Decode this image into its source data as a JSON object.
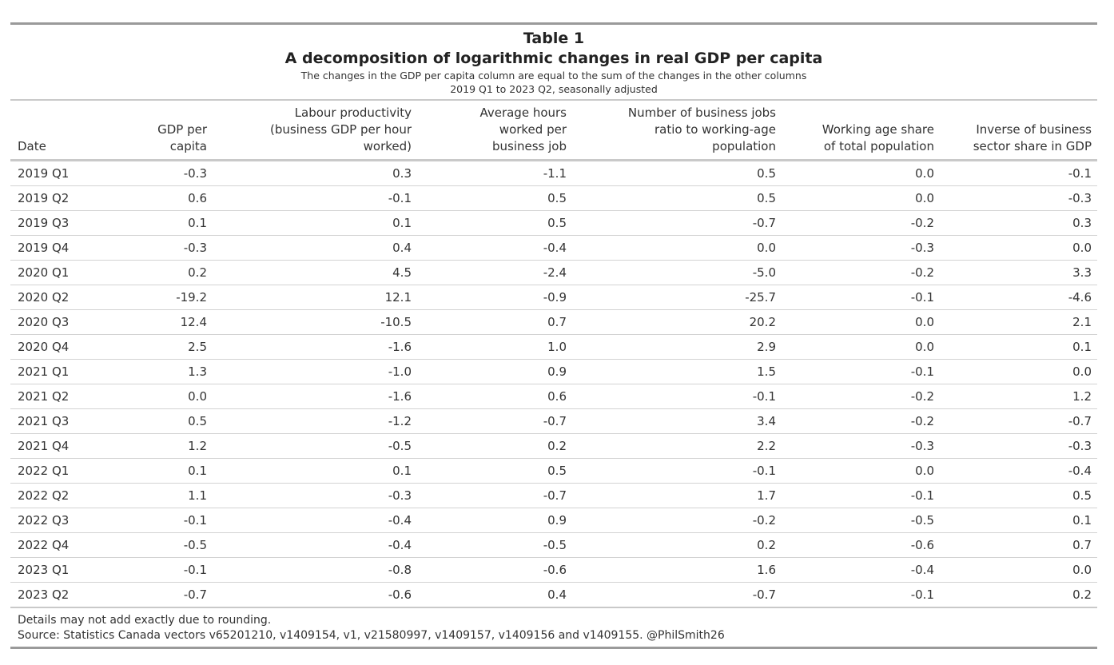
{
  "table_label": "Table 1",
  "title": "A decomposition of logarithmic changes in real GDP per capita",
  "subtitle_1": "The changes in the GDP per capita column are equal to the sum of the changes in the other columns",
  "subtitle_2": "2019 Q1 to 2023 Q2, seasonally adjusted",
  "columns": [
    [
      "Date"
    ],
    [
      "GDP per",
      "capita"
    ],
    [
      "Labour productivity",
      "(business GDP per hour",
      "worked)"
    ],
    [
      "Average hours",
      "worked per",
      "business job"
    ],
    [
      "Number of business jobs",
      "ratio to working-age",
      "population"
    ],
    [
      "Working age share",
      "of total population"
    ],
    [
      "Inverse of business",
      "sector share in GDP"
    ]
  ],
  "rows": [
    [
      "2019 Q1",
      "-0.3",
      "0.3",
      "-1.1",
      "0.5",
      "0.0",
      "-0.1"
    ],
    [
      "2019 Q2",
      "0.6",
      "-0.1",
      "0.5",
      "0.5",
      "0.0",
      "-0.3"
    ],
    [
      "2019 Q3",
      "0.1",
      "0.1",
      "0.5",
      "-0.7",
      "-0.2",
      "0.3"
    ],
    [
      "2019 Q4",
      "-0.3",
      "0.4",
      "-0.4",
      "0.0",
      "-0.3",
      "0.0"
    ],
    [
      "2020 Q1",
      "0.2",
      "4.5",
      "-2.4",
      "-5.0",
      "-0.2",
      "3.3"
    ],
    [
      "2020 Q2",
      "-19.2",
      "12.1",
      "-0.9",
      "-25.7",
      "-0.1",
      "-4.6"
    ],
    [
      "2020 Q3",
      "12.4",
      "-10.5",
      "0.7",
      "20.2",
      "0.0",
      "2.1"
    ],
    [
      "2020 Q4",
      "2.5",
      "-1.6",
      "1.0",
      "2.9",
      "0.0",
      "0.1"
    ],
    [
      "2021 Q1",
      "1.3",
      "-1.0",
      "0.9",
      "1.5",
      "-0.1",
      "0.0"
    ],
    [
      "2021 Q2",
      "0.0",
      "-1.6",
      "0.6",
      "-0.1",
      "-0.2",
      "1.2"
    ],
    [
      "2021 Q3",
      "0.5",
      "-1.2",
      "-0.7",
      "3.4",
      "-0.2",
      "-0.7"
    ],
    [
      "2021 Q4",
      "1.2",
      "-0.5",
      "0.2",
      "2.2",
      "-0.3",
      "-0.3"
    ],
    [
      "2022 Q1",
      "0.1",
      "0.1",
      "0.5",
      "-0.1",
      "0.0",
      "-0.4"
    ],
    [
      "2022 Q2",
      "1.1",
      "-0.3",
      "-0.7",
      "1.7",
      "-0.1",
      "0.5"
    ],
    [
      "2022 Q3",
      "-0.1",
      "-0.4",
      "0.9",
      "-0.2",
      "-0.5",
      "0.1"
    ],
    [
      "2022 Q4",
      "-0.5",
      "-0.4",
      "-0.5",
      "0.2",
      "-0.6",
      "0.7"
    ],
    [
      "2023 Q1",
      "-0.1",
      "-0.8",
      "-0.6",
      "1.6",
      "-0.4",
      "0.0"
    ],
    [
      "2023 Q2",
      "-0.7",
      "-0.6",
      "0.4",
      "-0.7",
      "-0.1",
      "0.2"
    ]
  ],
  "note": "Details may not add exactly due to rounding.",
  "source": "Source: Statistics Canada vectors v65201210, v1409154, v1, v21580997, v1409157, v1409156 and v1409155. @PhilSmith26"
}
